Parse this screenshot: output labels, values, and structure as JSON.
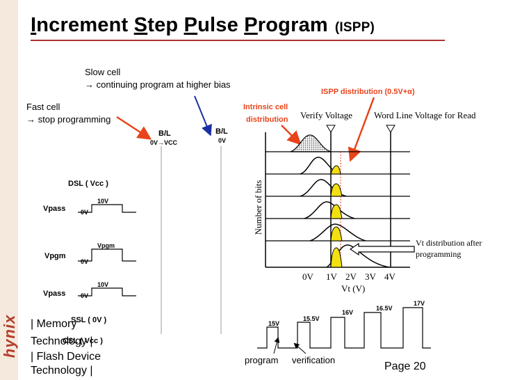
{
  "title": {
    "I": "I",
    "ncrement": "ncrement ",
    "S": "S",
    "tep": "tep ",
    "P1": "P",
    "ulse": "ulse ",
    "P2": "P",
    "rogram": "rogram",
    "abbr": "(ISPP)"
  },
  "brand": {
    "logo": "hynix"
  },
  "annotations": {
    "slow_cell": "Slow cell",
    "slow_cell_desc": "→ continuing program at higher bias",
    "fast_cell": "Fast cell",
    "fast_cell_desc": "→ stop programming",
    "ispp_distribution": "ISPP distribution (0.5V+α)",
    "intrinsic_cell": "Intrinsic cell",
    "intrinsic_cell2": "distribution"
  },
  "circuit": {
    "bl1": "B/L",
    "bl1_v": "0V→VCC",
    "bl2": "B/L",
    "bl2_v": "0V",
    "dsl": "DSL ( Vcc )",
    "vpass1": "Vpass",
    "vpass1_hi": "10V",
    "vpass1_lo": "0V",
    "vpgm": "Vpgm",
    "vpgm_hi": "Vpgm",
    "vpgm_lo": "0V",
    "vpass2": "Vpass",
    "vpass2_hi": "10V",
    "vpass2_lo": "0V",
    "ssl": "SSL ( 0V )",
    "csl": "CSL ( Vcc )"
  },
  "graph": {
    "verify": "Verify Voltage",
    "wl_read": "Word Line Voltage for Read",
    "ylabel": "Number of bits",
    "xlabel": "Vt (V)",
    "ticks": [
      "0V",
      "1V",
      "2V",
      "3V",
      "4V"
    ],
    "vt_after_1": "Vt distribution after",
    "vt_after_2": "programming"
  },
  "pulses": {
    "v15": "15V",
    "v155": "15.5V",
    "v16": "16V",
    "v165": "16.5V",
    "v17": "17V",
    "program": "program",
    "verification": "verification"
  },
  "footer": {
    "line1": "| Memory",
    "line2": "Technology |",
    "line3": "| Flash Device",
    "line4": "Technology |",
    "page": "Page 20"
  },
  "colors": {
    "accent": "#e8431a",
    "arrow_blue": "#1a2fa0",
    "fill_yellow": "#f2e010",
    "title_rule": "#b03030"
  }
}
